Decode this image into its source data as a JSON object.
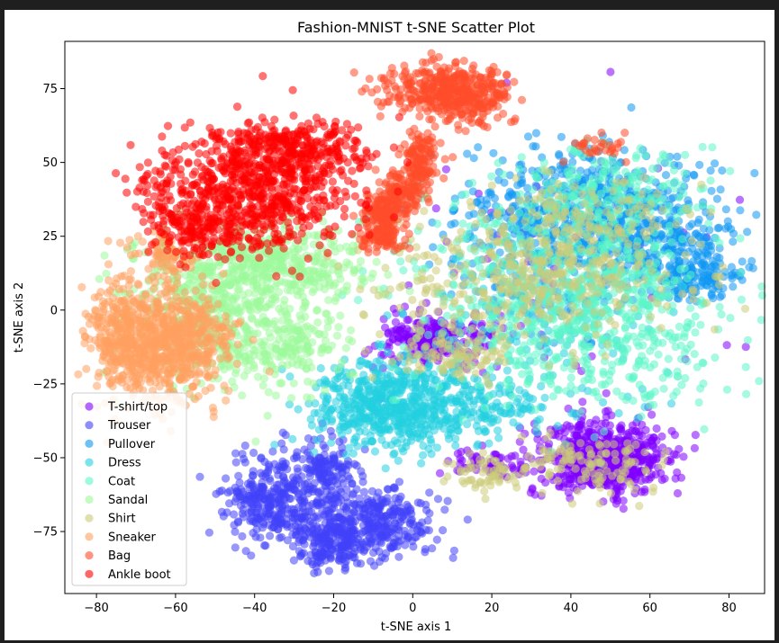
{
  "chart_data": {
    "type": "scatter",
    "title": "Fashion-MNIST t-SNE Scatter Plot",
    "xlabel": "t-SNE axis 1",
    "ylabel": "t-SNE axis 2",
    "xlim": [
      -88,
      89
    ],
    "ylim": [
      -96,
      91
    ],
    "xticks": [
      -80,
      -60,
      -40,
      -20,
      0,
      20,
      40,
      60,
      80
    ],
    "yticks": [
      -75,
      -50,
      -25,
      0,
      25,
      50,
      75
    ],
    "grid": false,
    "legend_position": "bottom-left",
    "series": [
      {
        "name": "T-shirt/top",
        "color": "#8000ff",
        "clusters": [
          {
            "cx": 48,
            "cy": -50,
            "sx": 8,
            "sy": 6,
            "n": 650
          },
          {
            "cx": 5,
            "cy": -10,
            "sx": 7,
            "sy": 4,
            "n": 260
          },
          {
            "cx": 20,
            "cy": -52,
            "sx": 6,
            "sy": 3,
            "n": 70
          },
          {
            "cx": 40,
            "cy": 10,
            "sx": 20,
            "sy": 25,
            "n": 70
          }
        ]
      },
      {
        "name": "Trouser",
        "color": "#4141fa",
        "clusters": [
          {
            "cx": -35,
            "cy": -65,
            "sx": 6,
            "sy": 8,
            "n": 330
          },
          {
            "cx": -20,
            "cy": -78,
            "sx": 5,
            "sy": 5,
            "n": 220
          },
          {
            "cx": -22,
            "cy": -55,
            "sx": 4,
            "sy": 6,
            "n": 150
          },
          {
            "cx": -8,
            "cy": -72,
            "sx": 7,
            "sy": 6,
            "n": 280
          }
        ]
      },
      {
        "name": "Pullover",
        "color": "#0e98f2",
        "clusters": [
          {
            "cx": 45,
            "cy": 35,
            "sx": 15,
            "sy": 10,
            "n": 420
          },
          {
            "cx": 62,
            "cy": 25,
            "sx": 10,
            "sy": 7,
            "n": 230
          },
          {
            "cx": 72,
            "cy": 12,
            "sx": 6,
            "sy": 4,
            "n": 150
          },
          {
            "cx": 30,
            "cy": 15,
            "sx": 12,
            "sy": 12,
            "n": 200
          }
        ]
      },
      {
        "name": "Dress",
        "color": "#22d0e0",
        "clusters": [
          {
            "cx": -5,
            "cy": -32,
            "sx": 10,
            "sy": 8,
            "n": 600
          },
          {
            "cx": 20,
            "cy": -32,
            "sx": 8,
            "sy": 6,
            "n": 120
          },
          {
            "cx": 35,
            "cy": -5,
            "sx": 15,
            "sy": 15,
            "n": 150
          }
        ]
      },
      {
        "name": "Coat",
        "color": "#5cf6c9",
        "clusters": [
          {
            "cx": 35,
            "cy": 5,
            "sx": 18,
            "sy": 18,
            "n": 650
          },
          {
            "cx": 50,
            "cy": 40,
            "sx": 12,
            "sy": 8,
            "n": 200
          },
          {
            "cx": 55,
            "cy": -5,
            "sx": 12,
            "sy": 15,
            "n": 220
          }
        ]
      },
      {
        "name": "Sandal",
        "color": "#9cf99b",
        "clusters": [
          {
            "cx": -35,
            "cy": 15,
            "sx": 12,
            "sy": 7,
            "n": 450
          },
          {
            "cx": -45,
            "cy": -8,
            "sx": 10,
            "sy": 10,
            "n": 300
          },
          {
            "cx": -55,
            "cy": 5,
            "sx": 10,
            "sy": 10,
            "n": 200
          },
          {
            "cx": -28,
            "cy": -12,
            "sx": 5,
            "sy": 7,
            "n": 100
          }
        ]
      },
      {
        "name": "Shirt",
        "color": "#cccc7a",
        "clusters": [
          {
            "cx": 30,
            "cy": 10,
            "sx": 18,
            "sy": 10,
            "n": 350
          },
          {
            "cx": 40,
            "cy": 30,
            "sx": 15,
            "sy": 8,
            "n": 150
          },
          {
            "cx": 10,
            "cy": -15,
            "sx": 8,
            "sy": 5,
            "n": 100
          },
          {
            "cx": 45,
            "cy": -52,
            "sx": 10,
            "sy": 5,
            "n": 120
          },
          {
            "cx": 20,
            "cy": -55,
            "sx": 5,
            "sy": 3,
            "n": 60
          }
        ]
      },
      {
        "name": "Sneaker",
        "color": "#ffa060",
        "clusters": [
          {
            "cx": -65,
            "cy": -12,
            "sx": 8,
            "sy": 10,
            "n": 650
          },
          {
            "cx": -75,
            "cy": -5,
            "sx": 4,
            "sy": 8,
            "n": 120
          },
          {
            "cx": -62,
            "cy": 18,
            "sx": 4,
            "sy": 5,
            "n": 80
          },
          {
            "cx": -55,
            "cy": -8,
            "sx": 5,
            "sy": 6,
            "n": 150
          }
        ]
      },
      {
        "name": "Bag",
        "color": "#ff4c2a",
        "clusters": [
          {
            "cx": 8,
            "cy": 75,
            "sx": 8,
            "sy": 4,
            "n": 350
          },
          {
            "cx": 15,
            "cy": 70,
            "sx": 5,
            "sy": 4,
            "n": 100
          },
          {
            "cx": 2,
            "cy": 52,
            "sx": 2,
            "sy": 5,
            "n": 120
          },
          {
            "cx": -3,
            "cy": 40,
            "sx": 3,
            "sy": 4,
            "n": 130
          },
          {
            "cx": -7,
            "cy": 32,
            "sx": 3,
            "sy": 3,
            "n": 120
          },
          {
            "cx": -8,
            "cy": 24,
            "sx": 3,
            "sy": 2,
            "n": 80
          },
          {
            "cx": 47,
            "cy": 55,
            "sx": 4,
            "sy": 2,
            "n": 30
          }
        ]
      },
      {
        "name": "Ankle boot",
        "color": "#ff0000",
        "clusters": [
          {
            "cx": -40,
            "cy": 40,
            "sx": 14,
            "sy": 10,
            "n": 700
          },
          {
            "cx": -30,
            "cy": 55,
            "sx": 10,
            "sy": 4,
            "n": 250
          },
          {
            "cx": -55,
            "cy": 28,
            "sx": 6,
            "sy": 5,
            "n": 150
          }
        ]
      }
    ]
  }
}
